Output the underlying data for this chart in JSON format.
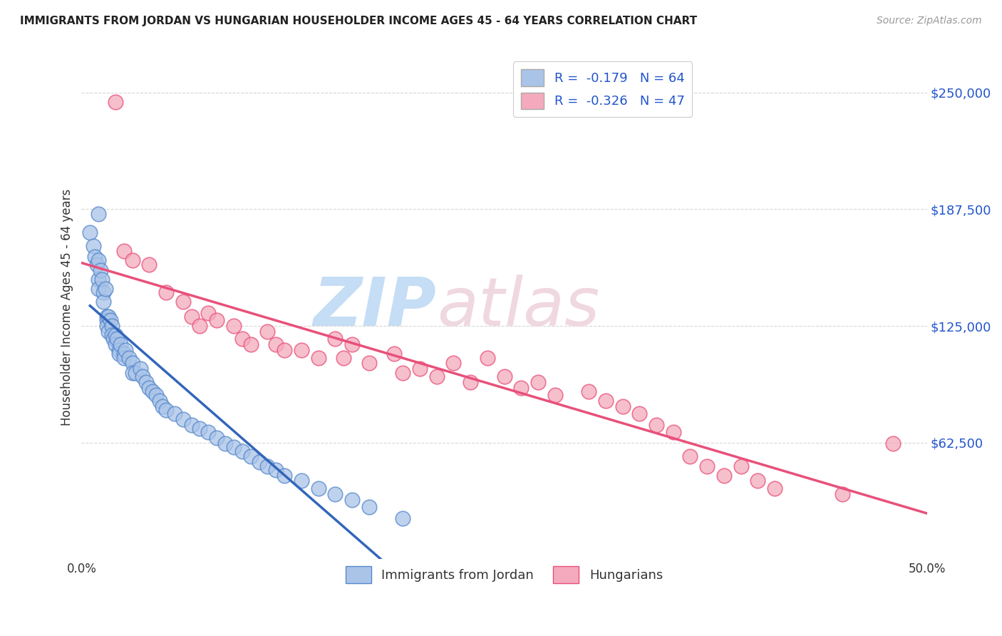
{
  "title": "IMMIGRANTS FROM JORDAN VS HUNGARIAN HOUSEHOLDER INCOME AGES 45 - 64 YEARS CORRELATION CHART",
  "source": "Source: ZipAtlas.com",
  "ylabel": "Householder Income Ages 45 - 64 years",
  "xlim": [
    0.0,
    0.5
  ],
  "ylim": [
    0,
    270000
  ],
  "yticks": [
    62500,
    125000,
    187500,
    250000
  ],
  "ytick_labels": [
    "$62,500",
    "$125,000",
    "$187,500",
    "$250,000"
  ],
  "xticks": [
    0.0,
    0.1,
    0.2,
    0.3,
    0.4,
    0.5
  ],
  "xtick_labels": [
    "0.0%",
    "",
    "",
    "",
    "",
    "50.0%"
  ],
  "r_jordan": -0.179,
  "n_jordan": 64,
  "r_hungarian": -0.326,
  "n_hungarian": 47,
  "background_color": "#ffffff",
  "grid_color": "#cccccc",
  "jordan_color": "#aac4e8",
  "jordan_edge_color": "#5588cc",
  "hungarian_color": "#f4aabc",
  "hungarian_edge_color": "#e8507a",
  "jordan_line_color": "#3366bb",
  "hungarian_line_color": "#e8507a",
  "watermark_zip_color": "#c8ddf0",
  "watermark_atlas_color": "#e8d0e0",
  "jordan_points_x": [
    0.005,
    0.007,
    0.008,
    0.009,
    0.01,
    0.01,
    0.01,
    0.01,
    0.011,
    0.012,
    0.013,
    0.013,
    0.014,
    0.015,
    0.015,
    0.015,
    0.016,
    0.016,
    0.017,
    0.018,
    0.018,
    0.019,
    0.02,
    0.02,
    0.021,
    0.022,
    0.022,
    0.023,
    0.025,
    0.025,
    0.026,
    0.028,
    0.03,
    0.03,
    0.032,
    0.035,
    0.036,
    0.038,
    0.04,
    0.042,
    0.044,
    0.046,
    0.048,
    0.05,
    0.055,
    0.06,
    0.065,
    0.07,
    0.075,
    0.08,
    0.085,
    0.09,
    0.095,
    0.1,
    0.105,
    0.11,
    0.115,
    0.12,
    0.13,
    0.14,
    0.15,
    0.16,
    0.17,
    0.19
  ],
  "jordan_points_y": [
    175000,
    168000,
    162000,
    158000,
    185000,
    160000,
    150000,
    145000,
    155000,
    150000,
    143000,
    138000,
    145000,
    130000,
    128000,
    125000,
    130000,
    122000,
    128000,
    125000,
    120000,
    118000,
    120000,
    115000,
    118000,
    112000,
    110000,
    115000,
    110000,
    108000,
    112000,
    108000,
    105000,
    100000,
    100000,
    102000,
    98000,
    95000,
    92000,
    90000,
    88000,
    85000,
    82000,
    80000,
    78000,
    75000,
    72000,
    70000,
    68000,
    65000,
    62000,
    60000,
    58000,
    55000,
    52000,
    50000,
    48000,
    45000,
    42000,
    38000,
    35000,
    32000,
    28000,
    22000
  ],
  "hungarian_points_x": [
    0.02,
    0.025,
    0.03,
    0.04,
    0.05,
    0.06,
    0.065,
    0.07,
    0.075,
    0.08,
    0.09,
    0.095,
    0.1,
    0.11,
    0.115,
    0.12,
    0.13,
    0.14,
    0.15,
    0.155,
    0.16,
    0.17,
    0.185,
    0.19,
    0.2,
    0.21,
    0.22,
    0.23,
    0.24,
    0.25,
    0.26,
    0.27,
    0.28,
    0.3,
    0.31,
    0.32,
    0.33,
    0.34,
    0.35,
    0.36,
    0.37,
    0.38,
    0.39,
    0.4,
    0.41,
    0.45,
    0.48
  ],
  "hungarian_points_y": [
    245000,
    165000,
    160000,
    158000,
    143000,
    138000,
    130000,
    125000,
    132000,
    128000,
    125000,
    118000,
    115000,
    122000,
    115000,
    112000,
    112000,
    108000,
    118000,
    108000,
    115000,
    105000,
    110000,
    100000,
    102000,
    98000,
    105000,
    95000,
    108000,
    98000,
    92000,
    95000,
    88000,
    90000,
    85000,
    82000,
    78000,
    72000,
    68000,
    55000,
    50000,
    45000,
    50000,
    42000,
    38000,
    35000,
    62000
  ]
}
